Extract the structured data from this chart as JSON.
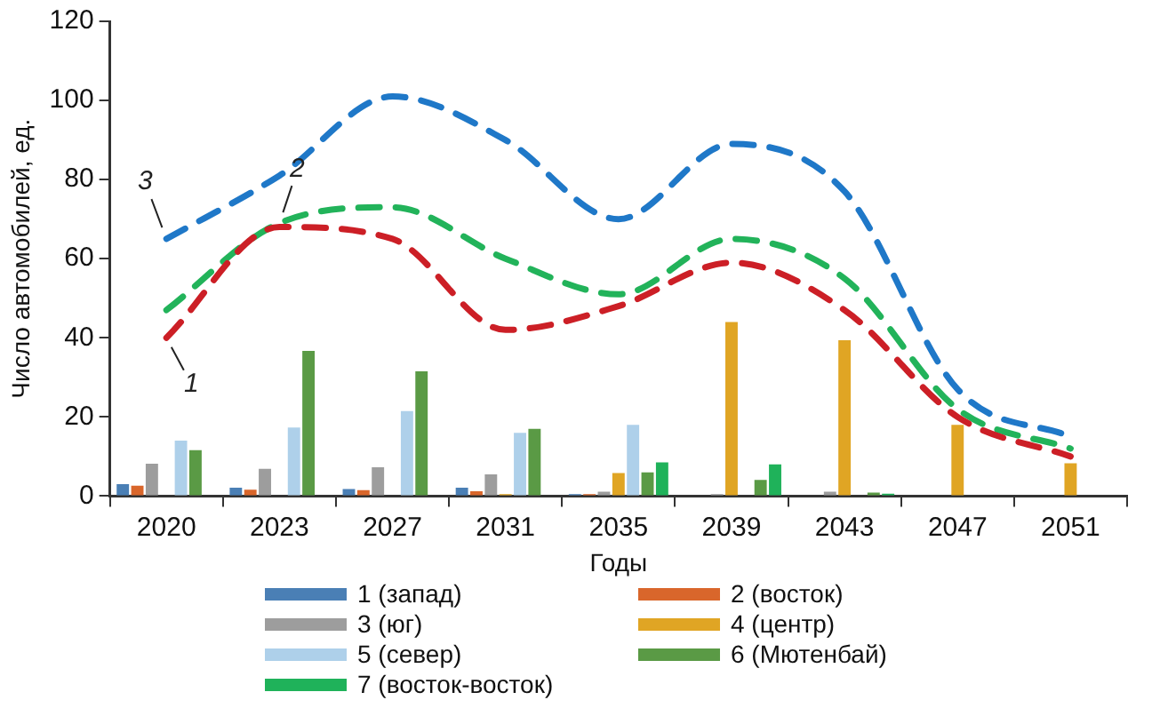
{
  "chart_data": {
    "type": "bar",
    "xlabel": "Годы",
    "ylabel": "Число автомобилей, ед.",
    "categories": [
      "2020",
      "2023",
      "2027",
      "2031",
      "2035",
      "2039",
      "2043",
      "2047",
      "2051"
    ],
    "ylim": [
      0,
      120
    ],
    "yticks": [
      0,
      20,
      40,
      60,
      80,
      100,
      120
    ],
    "grid": false,
    "legend": "bottom",
    "series": [
      {
        "name": "1 (запад)",
        "color": "#4a7fb5",
        "values": [
          3,
          2.1,
          1.8,
          2.1,
          0.5,
          null,
          null,
          null,
          null
        ]
      },
      {
        "name": "2 (восток)",
        "color": "#d9662b",
        "values": [
          2.6,
          1.6,
          1.5,
          1.2,
          0.5,
          null,
          null,
          null,
          null
        ]
      },
      {
        "name": "3 (юг)",
        "color": "#9d9d9d",
        "values": [
          8.2,
          6.9,
          7.3,
          5.5,
          1.1,
          0.5,
          1.1,
          null,
          null
        ]
      },
      {
        "name": "4 (центр)",
        "color": "#e0a524",
        "values": [
          null,
          null,
          null,
          0.5,
          5.8,
          44,
          39.4,
          18,
          8.3
        ]
      },
      {
        "name": "5 (север)",
        "color": "#aed0ea",
        "values": [
          14,
          17.3,
          21.5,
          16,
          18,
          null,
          null,
          null,
          null
        ]
      },
      {
        "name": "6 (Мютенбай)",
        "color": "#5a9a45",
        "values": [
          11.6,
          36.7,
          31.5,
          17,
          6,
          4.1,
          0.9,
          null,
          null
        ]
      },
      {
        "name": "7 (восток-восток)",
        "color": "#1fb25a",
        "values": [
          null,
          null,
          null,
          null,
          8.5,
          8,
          0.6,
          null,
          null
        ]
      },
      {
        "type": "line",
        "color": "#cc1f26",
        "line_style": "dashed",
        "marker": "none",
        "values": [
          40,
          68,
          65,
          42,
          48,
          59,
          47,
          20,
          10
        ]
      },
      {
        "type": "line",
        "color": "#22b35a",
        "line_style": "dashed",
        "marker": "none",
        "values": [
          47,
          69,
          73,
          60,
          51,
          65,
          55,
          22,
          12
        ]
      },
      {
        "type": "line",
        "color": "#1f78c8",
        "line_style": "dashed",
        "marker": "none",
        "values": [
          65,
          81,
          101,
          90,
          70,
          89,
          77,
          27,
          15
        ]
      }
    ],
    "annotations": [
      {
        "text": "1",
        "x": "2020",
        "y": 40
      },
      {
        "text": "2",
        "x": "2023",
        "y": 69
      },
      {
        "text": "3",
        "x": "2020",
        "y": 65
      }
    ]
  }
}
